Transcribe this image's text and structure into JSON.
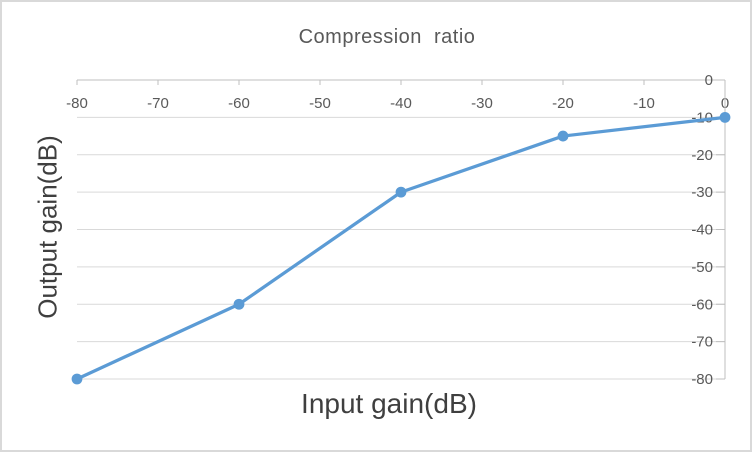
{
  "chart_data": {
    "type": "line",
    "title": "Compression ratio",
    "xlabel": "Input gain(dB)",
    "ylabel": "Output gain(dB)",
    "series": [
      {
        "name": "Output gain",
        "x": [
          -80,
          -60,
          -40,
          -20,
          0
        ],
        "y": [
          -80,
          -60,
          -30,
          -15,
          -10
        ]
      }
    ],
    "xlim": [
      -80,
      0
    ],
    "ylim": [
      -80,
      0
    ],
    "x_ticks": [
      -80,
      -70,
      -60,
      -50,
      -40,
      -30,
      -20,
      -10,
      0
    ],
    "y_ticks": [
      0,
      -10,
      -20,
      -30,
      -40,
      -50,
      -60,
      -70,
      -80
    ],
    "x_axis_position": "top",
    "y_axis_position": "right",
    "grid": "horizontal",
    "legend_visible": false,
    "marker": "circle",
    "style": {
      "line_color": "#5B9BD5",
      "marker_color": "#5B9BD5",
      "axis_line_color": "#BFBFBF",
      "gridline_color": "#D9D9D9",
      "tick_label_color": "#595959",
      "title_color": "#595959",
      "axis_title_color": "#3F3F3F",
      "background_color": "#FFFFFF",
      "frame_border_color": "#D9D9D9"
    }
  }
}
